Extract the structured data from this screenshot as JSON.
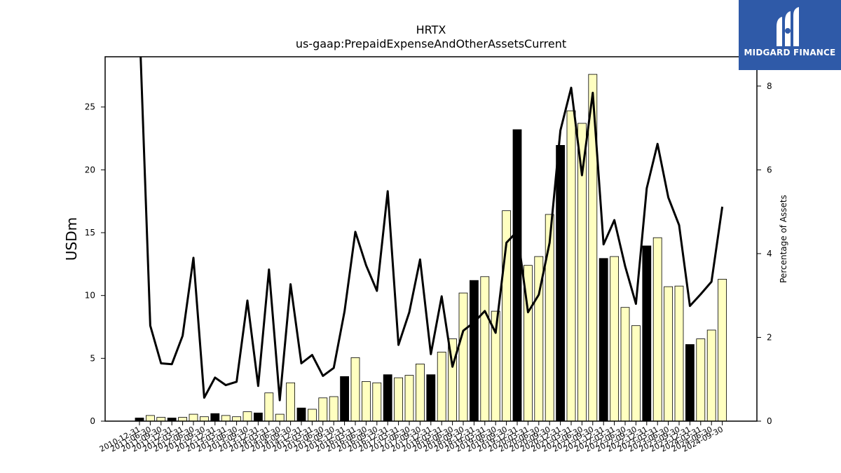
{
  "chart_data": {
    "type": "bar",
    "title": "HRTX",
    "subtitle": "us-gaap:PrepaidExpenseAndOtherAssetsCurrent",
    "ylabel": "USDm",
    "ylabel_right": "Percentage of Assets",
    "ylim": [
      0,
      29
    ],
    "ylim_right": [
      0,
      8.7
    ],
    "yticks": [
      0,
      5,
      10,
      15,
      20,
      25
    ],
    "yticks_right": [
      0,
      2,
      4,
      6,
      8
    ],
    "categories": [
      "2010-12-31",
      "2011-06-30",
      "2011-09-30",
      "2011-12-31",
      "2012-03-31",
      "2012-06-30",
      "2012-09-30",
      "2012-12-31",
      "2013-03-31",
      "2013-06-30",
      "2013-09-30",
      "2013-12-31",
      "2014-03-31",
      "2014-06-30",
      "2014-09-30",
      "2014-12-31",
      "2015-03-31",
      "2015-06-30",
      "2015-09-30",
      "2015-12-31",
      "2016-03-31",
      "2016-06-30",
      "2016-09-30",
      "2016-12-31",
      "2017-03-31",
      "2017-06-30",
      "2017-09-30",
      "2017-12-31",
      "2018-03-31",
      "2018-06-30",
      "2018-09-30",
      "2018-12-31",
      "2019-03-31",
      "2019-06-30",
      "2019-09-30",
      "2019-12-31",
      "2020-03-31",
      "2020-06-30",
      "2020-09-30",
      "2020-12-31",
      "2021-03-31",
      "2021-06-30",
      "2021-09-30",
      "2021-12-31",
      "2022-03-31",
      "2022-06-30",
      "2022-09-30",
      "2022-12-31",
      "2023-03-31",
      "2023-06-30",
      "2023-09-30",
      "2023-12-31",
      "2024-03-31",
      "2024-06-30",
      "2024-09-30"
    ],
    "series": [
      {
        "type": "bar",
        "values": [
          0.25,
          0.45,
          0.3,
          0.25,
          0.3,
          0.55,
          0.35,
          0.6,
          0.45,
          0.35,
          0.75,
          0.65,
          2.25,
          0.55,
          3.05,
          1.05,
          0.95,
          1.85,
          1.95,
          3.55,
          5.05,
          3.15,
          3.05,
          3.7,
          3.45,
          3.65,
          4.55,
          3.7,
          5.5,
          6.55,
          10.2,
          11.2,
          11.5,
          8.75,
          16.75,
          23.2,
          12.4,
          13.1,
          16.45,
          21.95,
          24.7,
          23.7,
          27.6,
          12.95,
          13.1,
          9.05,
          7.6,
          13.95,
          14.6,
          10.7,
          10.75,
          6.1,
          6.55,
          7.25,
          11.3
        ],
        "year_end": [
          true,
          false,
          false,
          true,
          false,
          false,
          false,
          true,
          false,
          false,
          false,
          true,
          false,
          false,
          false,
          true,
          false,
          false,
          false,
          true,
          false,
          false,
          false,
          true,
          false,
          false,
          false,
          true,
          false,
          false,
          false,
          true,
          false,
          false,
          false,
          true,
          false,
          false,
          false,
          true,
          false,
          false,
          false,
          true,
          false,
          false,
          false,
          true,
          false,
          false,
          false,
          true,
          false,
          false,
          false
        ],
        "color_year_end": "#000000",
        "color_quarter": "#ffffc0"
      },
      {
        "type": "line",
        "axis": "right",
        "values": [
          9.5,
          2.28,
          1.38,
          1.36,
          2.04,
          3.9,
          0.56,
          1.04,
          0.86,
          0.94,
          2.88,
          0.84,
          3.62,
          0.5,
          3.27,
          1.38,
          1.58,
          1.08,
          1.27,
          2.62,
          4.52,
          3.72,
          3.11,
          5.49,
          1.82,
          2.6,
          3.86,
          1.6,
          2.98,
          1.3,
          2.16,
          2.36,
          2.63,
          2.11,
          4.26,
          4.53,
          2.6,
          3.02,
          4.26,
          6.94,
          7.96,
          5.87,
          7.84,
          4.22,
          4.8,
          3.7,
          2.8,
          5.56,
          6.62,
          5.34,
          4.68,
          2.75,
          3.03,
          3.33,
          5.12
        ],
        "color": "#000000"
      }
    ],
    "grid": false
  },
  "logo": {
    "text": "MIDGARD FINANCE",
    "bg_color": "#2f5aa8"
  }
}
